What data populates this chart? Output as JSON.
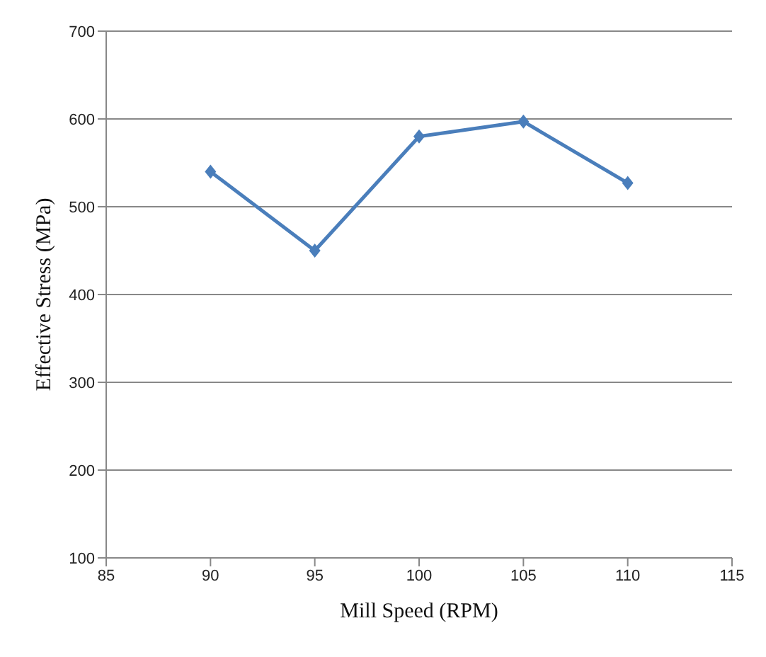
{
  "chart_data": {
    "type": "line",
    "xlabel": "Mill Speed (RPM)",
    "ylabel": "Effective Stress (MPa)",
    "x": [
      90,
      95,
      100,
      105,
      110
    ],
    "series": [
      {
        "color": "#4a7ebb",
        "values": [
          540,
          450,
          580,
          597,
          527
        ]
      }
    ],
    "xlim": [
      85,
      115
    ],
    "xticks": [
      85,
      90,
      95,
      100,
      105,
      110,
      115
    ],
    "ylim": [
      100,
      700
    ],
    "yticks": [
      100,
      200,
      300,
      400,
      500,
      600,
      700
    ],
    "grid": "y",
    "marker": "diamond",
    "line_style": "solid",
    "legend": false
  }
}
